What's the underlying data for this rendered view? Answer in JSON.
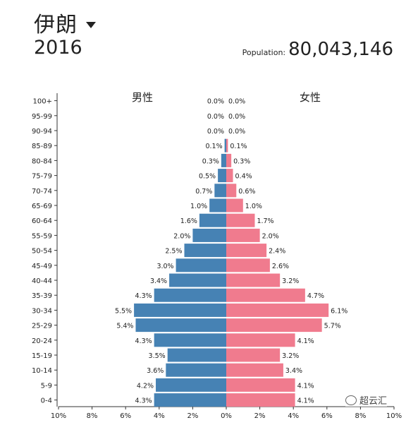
{
  "header": {
    "country": "伊朗",
    "year": "2016",
    "population_label": "Population:",
    "population_value": "80,043,146"
  },
  "watermark": "超云汇",
  "colors": {
    "male": "#4682b4",
    "female": "#f07b8e"
  },
  "chart_data": {
    "type": "bar",
    "orientation": "horizontal-population-pyramid",
    "categories": [
      "100+",
      "95-99",
      "90-94",
      "85-89",
      "80-84",
      "75-79",
      "70-74",
      "65-69",
      "60-64",
      "55-59",
      "50-54",
      "45-49",
      "40-44",
      "35-39",
      "30-34",
      "25-29",
      "20-24",
      "15-19",
      "10-14",
      "5-9",
      "0-4"
    ],
    "series": [
      {
        "name": "男性",
        "values": [
          0.0,
          0.0,
          0.0,
          0.1,
          0.3,
          0.5,
          0.7,
          1.0,
          1.6,
          2.0,
          2.5,
          3.0,
          3.4,
          4.3,
          5.5,
          5.4,
          4.3,
          3.5,
          3.6,
          4.2,
          4.3
        ]
      },
      {
        "name": "女性",
        "values": [
          0.0,
          0.0,
          0.0,
          0.1,
          0.3,
          0.4,
          0.6,
          1.0,
          1.7,
          2.0,
          2.4,
          2.6,
          3.2,
          4.7,
          6.1,
          5.7,
          4.1,
          3.2,
          3.4,
          4.1,
          4.1
        ]
      }
    ],
    "xlim": [
      -10,
      10
    ],
    "xticks": [
      "10%",
      "8%",
      "6%",
      "4%",
      "2%",
      "0%",
      "2%",
      "4%",
      "6%",
      "8%",
      "10%"
    ],
    "unit": "%"
  }
}
